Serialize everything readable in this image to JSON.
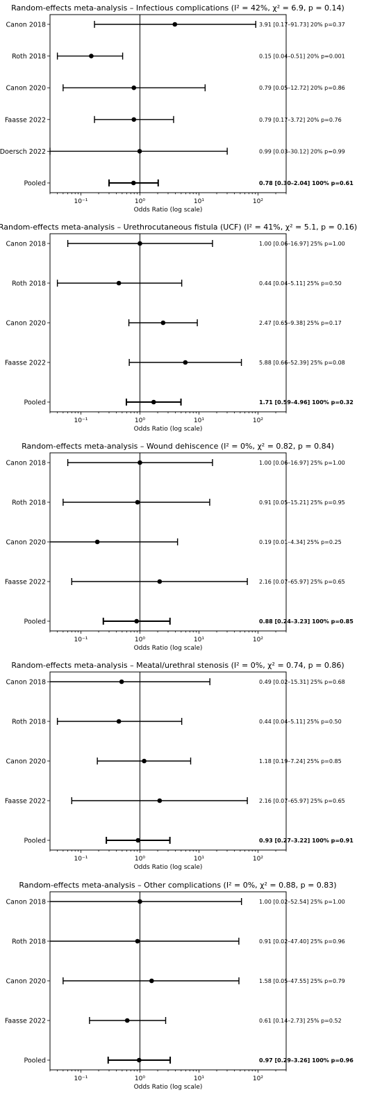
{
  "chart_data": [
    {
      "type": "forest",
      "title": "Random-effects meta-analysis – Infectious complications (I² = 42%, χ² = 6.9, p = 0.14)",
      "xlabel": "Odds Ratio (log scale)",
      "xscale": "log",
      "xlim": [
        0.03,
        300
      ],
      "xticks": [
        "10⁻¹",
        "10⁰",
        "10¹",
        "10²"
      ],
      "reference_line": 1,
      "rows": [
        {
          "label": "Canon 2018",
          "or": 3.91,
          "lo": 0.17,
          "hi": 91.73,
          "text": "3.91 [0.17–91.73]   20%   p=0.37",
          "bold": false
        },
        {
          "label": "Roth 2018",
          "or": 0.15,
          "lo": 0.04,
          "hi": 0.51,
          "text": "0.15 [0.04–0.51]   20%   p=0.001",
          "bold": false
        },
        {
          "label": "Canon 2020",
          "or": 0.79,
          "lo": 0.05,
          "hi": 12.72,
          "text": "0.79 [0.05–12.72]   20%   p=0.86",
          "bold": false
        },
        {
          "label": "Faasse 2022",
          "or": 0.79,
          "lo": 0.17,
          "hi": 3.72,
          "text": "0.79 [0.17–3.72]   20%   p=0.76",
          "bold": false
        },
        {
          "label": "Doersch 2022",
          "or": 0.99,
          "lo": 0.03,
          "hi": 30.12,
          "text": "0.99 [0.03–30.12]   20%   p=0.99",
          "bold": false
        },
        {
          "label": "Pooled",
          "or": 0.78,
          "lo": 0.3,
          "hi": 2.04,
          "text": "0.78 [0.30–2.04]   100%   p=0.61",
          "bold": true
        }
      ]
    },
    {
      "type": "forest",
      "title": "Random-effects meta-analysis – Urethrocutaneous fistula (UCF) (I² = 41%, χ² = 5.1, p = 0.16)",
      "xlabel": "Odds Ratio (log scale)",
      "xscale": "log",
      "xlim": [
        0.03,
        300
      ],
      "xticks": [
        "10⁻¹",
        "10⁰",
        "10¹",
        "10²"
      ],
      "reference_line": 1,
      "rows": [
        {
          "label": "Canon 2018",
          "or": 1.0,
          "lo": 0.06,
          "hi": 16.97,
          "text": "1.00 [0.06–16.97]   25%   p=1.00",
          "bold": false
        },
        {
          "label": "Roth 2018",
          "or": 0.44,
          "lo": 0.04,
          "hi": 5.11,
          "text": "0.44 [0.04–5.11]   25%   p=0.50",
          "bold": false
        },
        {
          "label": "Canon 2020",
          "or": 2.47,
          "lo": 0.65,
          "hi": 9.38,
          "text": "2.47 [0.65–9.38]   25%   p=0.17",
          "bold": false
        },
        {
          "label": "Faasse 2022",
          "or": 5.88,
          "lo": 0.66,
          "hi": 52.39,
          "text": "5.88 [0.66–52.39]   25%   p=0.08",
          "bold": false
        },
        {
          "label": "Pooled",
          "or": 1.71,
          "lo": 0.59,
          "hi": 4.96,
          "text": "1.71 [0.59–4.96]   100%   p=0.32",
          "bold": true
        }
      ]
    },
    {
      "type": "forest",
      "title": "Random-effects meta-analysis – Wound dehiscence (I² = 0%, χ² = 0.82, p = 0.84)",
      "xlabel": "Odds Ratio (log scale)",
      "xscale": "log",
      "xlim": [
        0.03,
        300
      ],
      "xticks": [
        "10⁻¹",
        "10⁰",
        "10¹",
        "10²"
      ],
      "reference_line": 1,
      "rows": [
        {
          "label": "Canon 2018",
          "or": 1.0,
          "lo": 0.06,
          "hi": 16.97,
          "text": "1.00 [0.06–16.97]   25%   p=1.00",
          "bold": false
        },
        {
          "label": "Roth 2018",
          "or": 0.91,
          "lo": 0.05,
          "hi": 15.21,
          "text": "0.91 [0.05–15.21]   25%   p=0.95",
          "bold": false
        },
        {
          "label": "Canon 2020",
          "or": 0.19,
          "lo": 0.01,
          "hi": 4.34,
          "text": "0.19 [0.01–4.34]   25%   p=0.25",
          "bold": false
        },
        {
          "label": "Faasse 2022",
          "or": 2.16,
          "lo": 0.07,
          "hi": 65.97,
          "text": "2.16 [0.07–65.97]   25%   p=0.65",
          "bold": false
        },
        {
          "label": "Pooled",
          "or": 0.88,
          "lo": 0.24,
          "hi": 3.23,
          "text": "0.88 [0.24–3.23]   100%   p=0.85",
          "bold": true
        }
      ]
    },
    {
      "type": "forest",
      "title": "Random-effects meta-analysis – Meatal/urethral stenosis (I² = 0%, χ² = 0.74, p = 0.86)",
      "xlabel": "Odds Ratio (log scale)",
      "xscale": "log",
      "xlim": [
        0.03,
        300
      ],
      "xticks": [
        "10⁻¹",
        "10⁰",
        "10¹",
        "10²"
      ],
      "reference_line": 1,
      "rows": [
        {
          "label": "Canon 2018",
          "or": 0.49,
          "lo": 0.02,
          "hi": 15.31,
          "text": "0.49 [0.02–15.31]   25%   p=0.68",
          "bold": false
        },
        {
          "label": "Roth 2018",
          "or": 0.44,
          "lo": 0.04,
          "hi": 5.11,
          "text": "0.44 [0.04–5.11]   25%   p=0.50",
          "bold": false
        },
        {
          "label": "Canon 2020",
          "or": 1.18,
          "lo": 0.19,
          "hi": 7.24,
          "text": "1.18 [0.19–7.24]   25%   p=0.85",
          "bold": false
        },
        {
          "label": "Faasse 2022",
          "or": 2.16,
          "lo": 0.07,
          "hi": 65.97,
          "text": "2.16 [0.07–65.97]   25%   p=0.65",
          "bold": false
        },
        {
          "label": "Pooled",
          "or": 0.93,
          "lo": 0.27,
          "hi": 3.22,
          "text": "0.93 [0.27–3.22]   100%   p=0.91",
          "bold": true
        }
      ]
    },
    {
      "type": "forest",
      "title": "Random-effects meta-analysis – Other complications (I² = 0%, χ² = 0.88, p = 0.83)",
      "xlabel": "Odds Ratio (log scale)",
      "xscale": "log",
      "xlim": [
        0.03,
        300
      ],
      "xticks": [
        "10⁻¹",
        "10⁰",
        "10¹",
        "10²"
      ],
      "reference_line": 1,
      "rows": [
        {
          "label": "Canon 2018",
          "or": 1.0,
          "lo": 0.02,
          "hi": 52.54,
          "text": "1.00 [0.02–52.54]   25%   p=1.00",
          "bold": false
        },
        {
          "label": "Roth 2018",
          "or": 0.91,
          "lo": 0.02,
          "hi": 47.4,
          "text": "0.91 [0.02–47.40]   25%   p=0.96",
          "bold": false
        },
        {
          "label": "Canon 2020",
          "or": 1.58,
          "lo": 0.05,
          "hi": 47.55,
          "text": "1.58 [0.05–47.55]   25%   p=0.79",
          "bold": false
        },
        {
          "label": "Faasse 2022",
          "or": 0.61,
          "lo": 0.14,
          "hi": 2.73,
          "text": "0.61 [0.14–2.73]   25%   p=0.52",
          "bold": false
        },
        {
          "label": "Pooled",
          "or": 0.97,
          "lo": 0.29,
          "hi": 3.26,
          "text": "0.97 [0.29–3.26]   100%   p=0.96",
          "bold": true
        }
      ]
    }
  ]
}
